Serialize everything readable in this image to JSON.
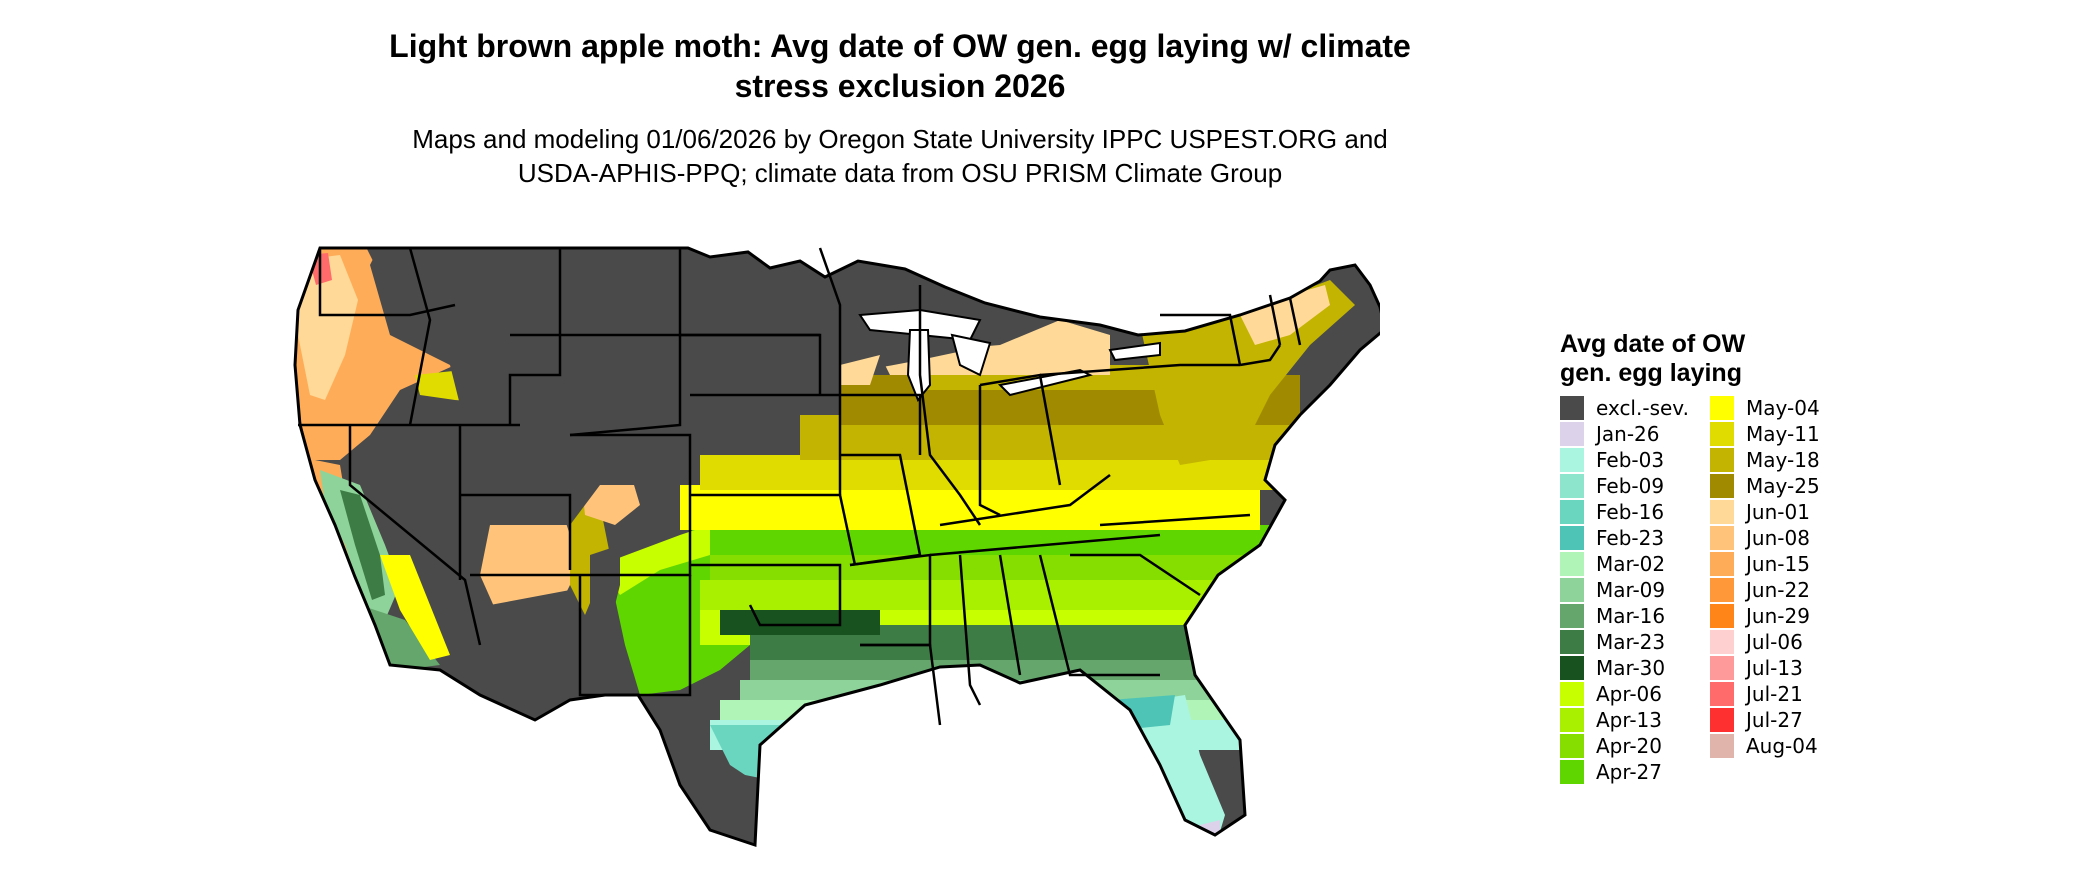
{
  "title": {
    "line1": "Light brown apple moth: Avg date of OW gen. egg laying w/ climate",
    "line2": "stress exclusion 2026"
  },
  "subtitle": {
    "line1": "Maps and modeling 01/06/2026 by Oregon State University IPPC USPEST.ORG and",
    "line2": "USDA-APHIS-PPQ; climate data from OSU PRISM Climate Group"
  },
  "map": {
    "region": "Contiguous United States",
    "excluded_color": "#4a4a4a",
    "border_color": "#000000",
    "water_color": "#ffffff"
  },
  "legend": {
    "title_line1": "Avg date of OW",
    "title_line2": "gen. egg laying",
    "columns": [
      [
        {
          "label": "excl.-sev.",
          "color": "#4a4a4a"
        },
        {
          "label": "Jan-26",
          "color": "#dcd3ea"
        },
        {
          "label": "Feb-03",
          "color": "#a9f5e0"
        },
        {
          "label": "Feb-09",
          "color": "#8de6cc"
        },
        {
          "label": "Feb-16",
          "color": "#6ad6c0"
        },
        {
          "label": "Feb-23",
          "color": "#4ec4b6"
        },
        {
          "label": "Mar-02",
          "color": "#b0f4b8"
        },
        {
          "label": "Mar-09",
          "color": "#8ed49a"
        },
        {
          "label": "Mar-16",
          "color": "#64a66c"
        },
        {
          "label": "Mar-23",
          "color": "#3e7c46"
        },
        {
          "label": "Mar-30",
          "color": "#17521f"
        },
        {
          "label": "Apr-06",
          "color": "#c8ff00"
        },
        {
          "label": "Apr-13",
          "color": "#a8f000"
        },
        {
          "label": "Apr-20",
          "color": "#86de00"
        },
        {
          "label": "Apr-27",
          "color": "#5fd600"
        }
      ],
      [
        {
          "label": "May-04",
          "color": "#ffff00"
        },
        {
          "label": "May-11",
          "color": "#e0dc00"
        },
        {
          "label": "May-18",
          "color": "#c2b400"
        },
        {
          "label": "May-25",
          "color": "#a08a00"
        },
        {
          "label": "Jun-01",
          "color": "#ffd998"
        },
        {
          "label": "Jun-08",
          "color": "#ffc47a"
        },
        {
          "label": "Jun-15",
          "color": "#ffac58"
        },
        {
          "label": "Jun-22",
          "color": "#ff9838"
        },
        {
          "label": "Jun-29",
          "color": "#ff8518"
        },
        {
          "label": "Jul-06",
          "color": "#ffd0d0"
        },
        {
          "label": "Jul-13",
          "color": "#ff9a9a"
        },
        {
          "label": "Jul-21",
          "color": "#ff6a6a"
        },
        {
          "label": "Jul-27",
          "color": "#ff3030"
        },
        {
          "label": "Aug-04",
          "color": "#e0b4aa"
        }
      ]
    ]
  }
}
